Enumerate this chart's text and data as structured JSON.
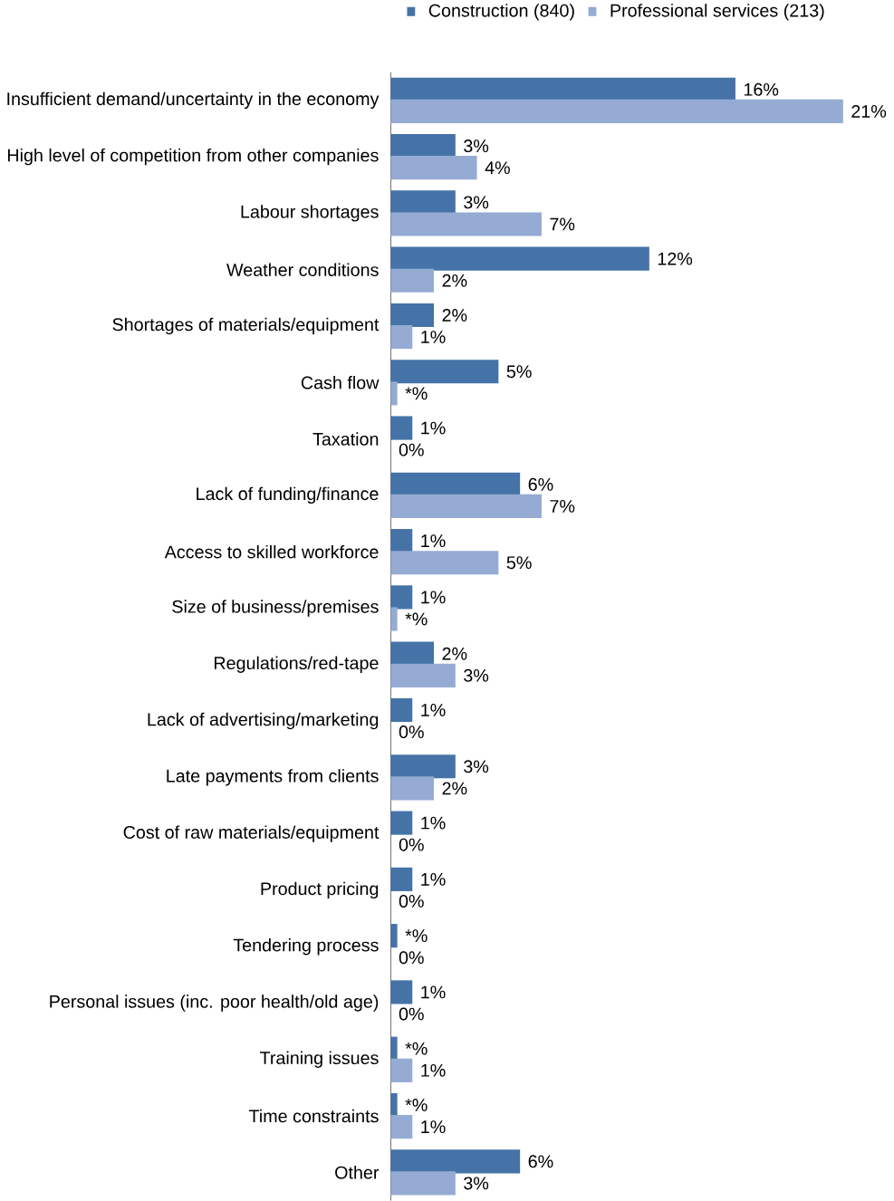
{
  "chart_data": {
    "type": "bar",
    "orientation": "horizontal",
    "legend": "top",
    "data_labels": true,
    "categories": [
      "Insufficient demand/uncertainty in the economy",
      "High level of competition from other companies",
      "Labour shortages",
      "Weather conditions",
      "Shortages of materials/equipment",
      "Cash flow",
      "Taxation",
      "Lack of funding/finance",
      "Access to skilled workforce",
      "Size of business/premises",
      "Regulations/red-tape",
      "Lack of advertising/marketing",
      "Late payments from clients",
      "Cost of raw materials/equipment",
      "Product pricing",
      "Tendering process",
      "Personal issues (inc. poor health/old age)",
      "Training issues",
      "Time constraints",
      "Other"
    ],
    "series": [
      {
        "name": "Construction (840)",
        "color": "#4573a7",
        "values": [
          16,
          3,
          3,
          12,
          2,
          5,
          1,
          6,
          1,
          1,
          2,
          1,
          3,
          1,
          1,
          0.3,
          1,
          0.3,
          0.3,
          6
        ],
        "value_labels": [
          "16%",
          "3%",
          "3%",
          "12%",
          "2%",
          "5%",
          "1%",
          "6%",
          "1%",
          "1%",
          "2%",
          "1%",
          "3%",
          "1%",
          "1%",
          "*%",
          "1%",
          "*%",
          "*%",
          "6%"
        ]
      },
      {
        "name": "Professional services (213)",
        "color": "#95abd3",
        "values": [
          21,
          4,
          7,
          2,
          1,
          0.3,
          0,
          7,
          5,
          0.3,
          3,
          0,
          2,
          0,
          0,
          0,
          0,
          1,
          1,
          3
        ],
        "value_labels": [
          "21%",
          "4%",
          "7%",
          "2%",
          "1%",
          "*%",
          "0%",
          "7%",
          "5%",
          "*%",
          "3%",
          "0%",
          "2%",
          "0%",
          "0%",
          "0%",
          "0%",
          "1%",
          "1%",
          "3%"
        ]
      }
    ]
  }
}
